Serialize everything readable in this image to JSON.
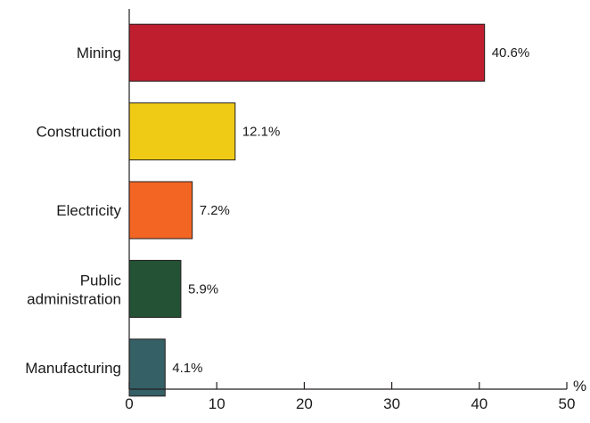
{
  "chart_data": {
    "type": "bar",
    "orientation": "horizontal",
    "categories": [
      "Mining",
      "Construction",
      "Electricity",
      "Public administration",
      "Manufacturing"
    ],
    "values": [
      40.6,
      12.1,
      7.2,
      5.9,
      4.1
    ],
    "value_labels": [
      "40.6%",
      "12.1%",
      "7.2%",
      "5.9%",
      "4.1%"
    ],
    "bar_colors": [
      "#be1e2d",
      "#f0cb16",
      "#f26522",
      "#235235",
      "#356065"
    ],
    "xlim": [
      0,
      50
    ],
    "xticks": [
      0,
      10,
      20,
      30,
      40,
      50
    ],
    "x_unit": "%",
    "grid": false,
    "legend": "none"
  }
}
